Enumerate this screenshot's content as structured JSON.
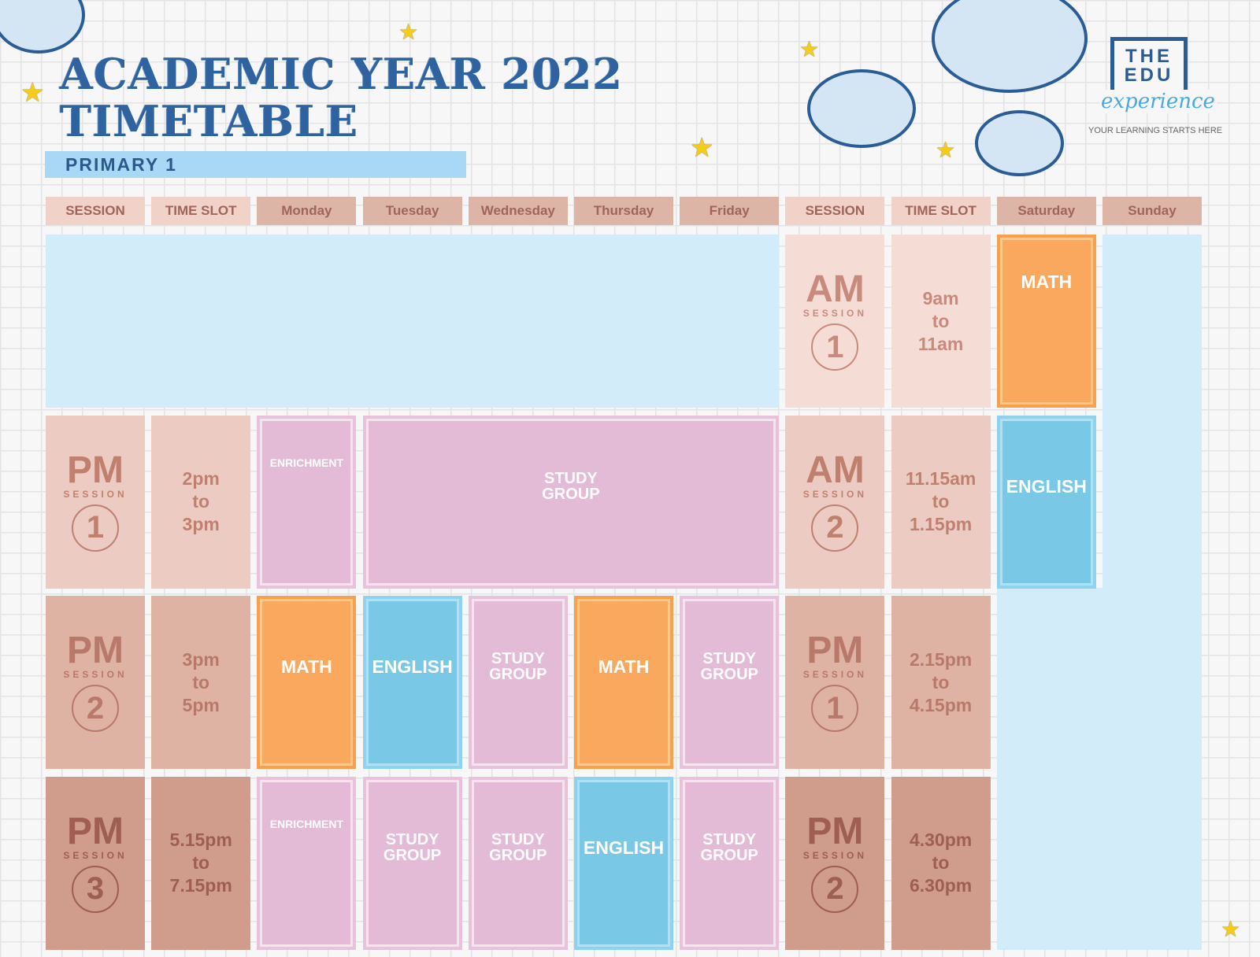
{
  "title": {
    "line1": "ACADEMIC YEAR 2022",
    "line2": "TIMETABLE",
    "grade": "PRIMARY 1"
  },
  "logo": {
    "the": "THE",
    "edu": "EDU",
    "experience": "experience",
    "tagline": "YOUR LEARNING STARTS HERE"
  },
  "headers": [
    "SESSION",
    "TIME SLOT",
    "Monday",
    "Tuesday",
    "Wednesday",
    "Thursday",
    "Friday",
    "SESSION",
    "TIME SLOT",
    "Saturday",
    "Sunday"
  ],
  "session_word": "SESSION",
  "weekday_sessions": [
    {
      "label": "PM",
      "num": "1",
      "time": [
        "2pm",
        "to",
        "3pm"
      ]
    },
    {
      "label": "PM",
      "num": "2",
      "time": [
        "3pm",
        "to",
        "5pm"
      ]
    },
    {
      "label": "PM",
      "num": "3",
      "time": [
        "5.15pm",
        "to",
        "7.15pm"
      ]
    }
  ],
  "weekend_sessions": [
    {
      "label": "AM",
      "num": "1",
      "time": [
        "9am",
        "to",
        "11am"
      ]
    },
    {
      "label": "AM",
      "num": "2",
      "time": [
        "11.15am",
        "to",
        "1.15pm"
      ]
    },
    {
      "label": "PM",
      "num": "1",
      "time": [
        "2.15pm",
        "to",
        "4.15pm"
      ]
    },
    {
      "label": "PM",
      "num": "2",
      "time": [
        "4.30pm",
        "to",
        "6.30pm"
      ]
    }
  ],
  "subjects": {
    "r1_mon": "ENRICHMENT",
    "r1_tue_fri": "STUDY GROUP",
    "r2": [
      "MATH",
      "ENGLISH",
      "STUDY GROUP",
      "MATH",
      "STUDY GROUP"
    ],
    "r3": [
      "ENRICHMENT",
      "STUDY GROUP",
      "STUDY GROUP",
      "ENGLISH",
      "STUDY GROUP"
    ],
    "sat": [
      "MATH",
      "ENGLISH"
    ]
  },
  "colors": {
    "math": "#f9a85d",
    "english": "#78c8e6",
    "study": "#e4bbd6",
    "empty": "#d2ecfa",
    "title": "#2f63a0"
  }
}
